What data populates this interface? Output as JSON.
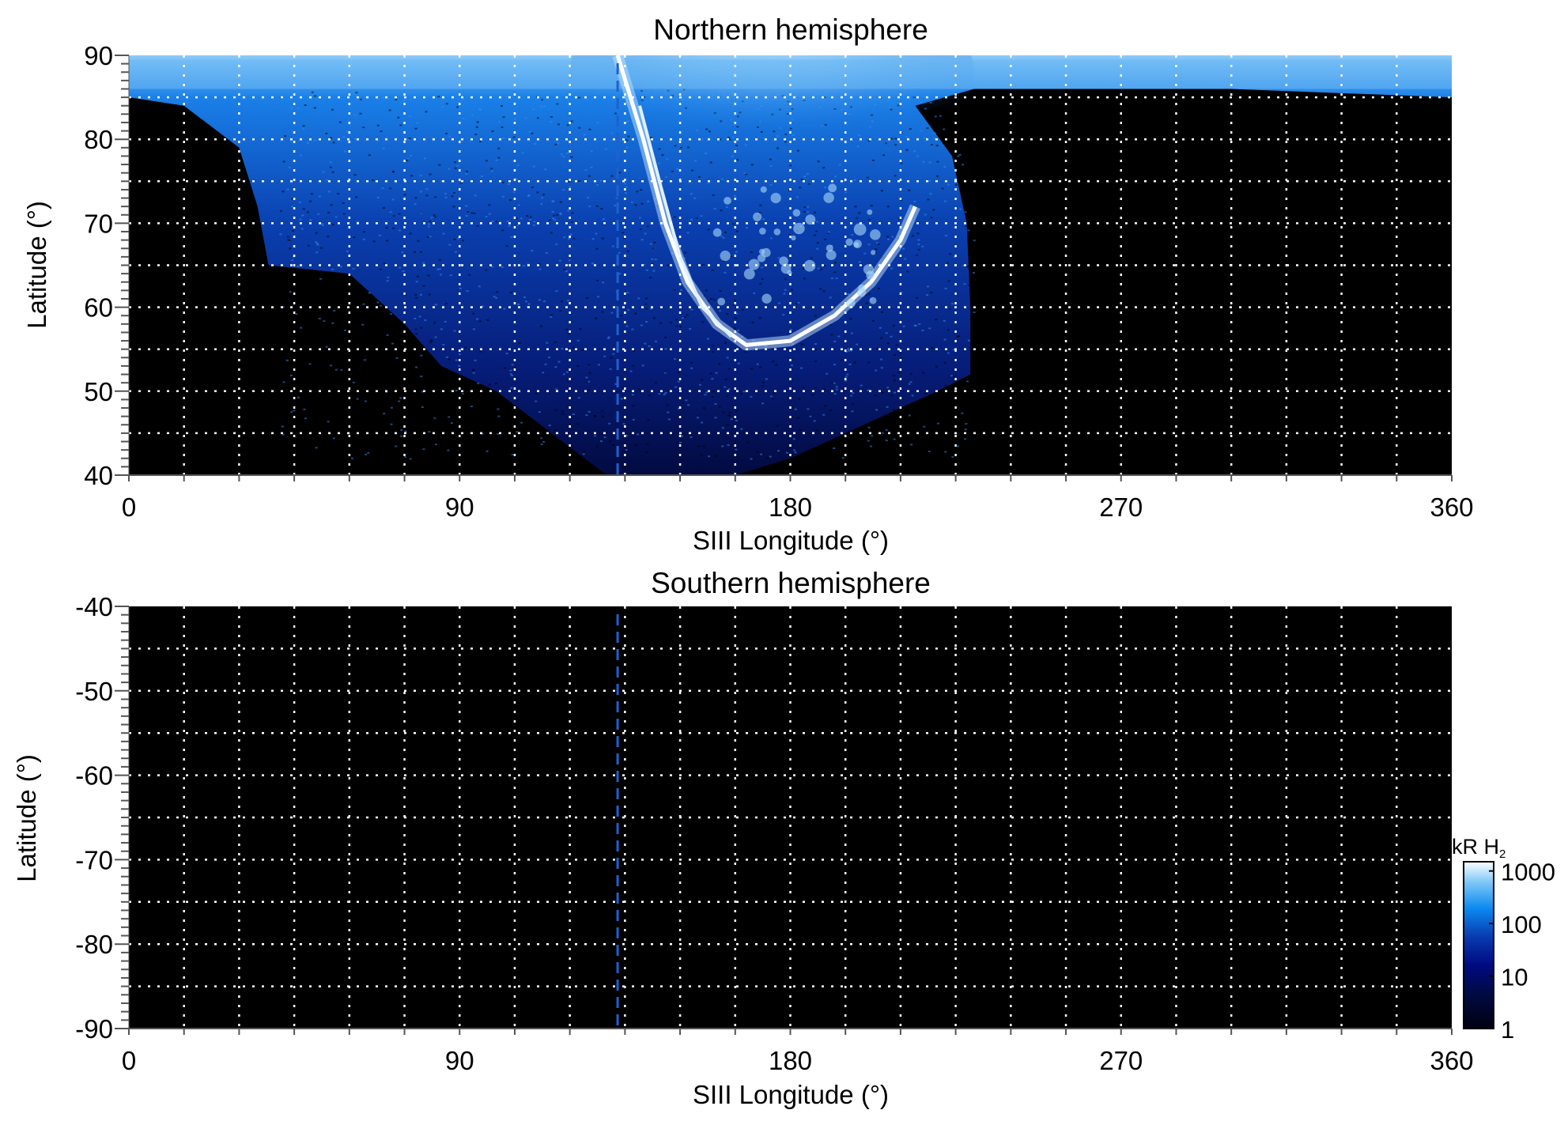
{
  "chart_data": [
    {
      "type": "heatmap",
      "title": "Northern hemisphere",
      "xlabel": "SIII Longitude (°)",
      "ylabel": "Latitude (°)",
      "xlim": [
        0,
        360
      ],
      "ylim": [
        40,
        90
      ],
      "xticks": [
        "0",
        "90",
        "180",
        "270",
        "360"
      ],
      "yticks": [
        "40",
        "50",
        "60",
        "70",
        "80",
        "90"
      ],
      "grid": {
        "lon_step": 15,
        "lat_step": 5,
        "style": "dotted white"
      },
      "reference_longitude": 133,
      "description_values": {
        "emission_region_boundary": [
          [
            0,
            85
          ],
          [
            15,
            84
          ],
          [
            30,
            79
          ],
          [
            35,
            72
          ],
          [
            38,
            65
          ],
          [
            60,
            64
          ],
          [
            75,
            58
          ],
          [
            85,
            53
          ],
          [
            100,
            50
          ],
          [
            115,
            45
          ],
          [
            130,
            40
          ],
          [
            165,
            40
          ],
          [
            180,
            42
          ],
          [
            200,
            46
          ],
          [
            220,
            50
          ],
          [
            229,
            52
          ],
          [
            229,
            60
          ],
          [
            228,
            70
          ],
          [
            224,
            78
          ],
          [
            214,
            84
          ],
          [
            230,
            86
          ],
          [
            300,
            86
          ],
          [
            360,
            85
          ],
          [
            360,
            90
          ],
          [
            0,
            90
          ]
        ],
        "main_oval": [
          [
            133,
            90
          ],
          [
            140,
            80
          ],
          [
            146,
            70
          ],
          [
            152,
            63
          ],
          [
            160,
            58
          ],
          [
            168,
            55.5
          ],
          [
            180,
            56
          ],
          [
            192,
            59
          ],
          [
            202,
            63
          ],
          [
            210,
            68
          ],
          [
            214,
            72
          ]
        ],
        "inner_arc": [
          [
            139,
            84
          ],
          [
            145,
            74
          ],
          [
            150,
            66
          ],
          [
            156,
            60
          ],
          [
            164,
            56.5
          ]
        ]
      }
    },
    {
      "type": "heatmap",
      "title": "Southern hemisphere",
      "xlabel": "SIII Longitude (°)",
      "ylabel": "Latitude (°)",
      "xlim": [
        0,
        360
      ],
      "ylim": [
        -90,
        -40
      ],
      "xticks": [
        "0",
        "90",
        "180",
        "270",
        "360"
      ],
      "yticks": [
        "-40",
        "-50",
        "-60",
        "-70",
        "-80",
        "-90"
      ],
      "grid": {
        "lon_step": 15,
        "lat_step": 5,
        "style": "dotted white"
      },
      "reference_longitude": 133
    }
  ],
  "colorbar": {
    "label": "kR H",
    "label_sub": "2",
    "scale": "log",
    "ticks": [
      "1000",
      "100",
      "10",
      "1"
    ],
    "tick_values": [
      1000,
      100,
      10,
      1
    ],
    "range": [
      1,
      1500
    ],
    "colors": [
      "#000010",
      "#000a50",
      "#0a2aa0",
      "#0a7ae8",
      "#60b8f8",
      "#ffffff"
    ]
  },
  "colors": {
    "reference_line": "#2060d0",
    "background": "#000000",
    "grid": "#ffffff"
  }
}
